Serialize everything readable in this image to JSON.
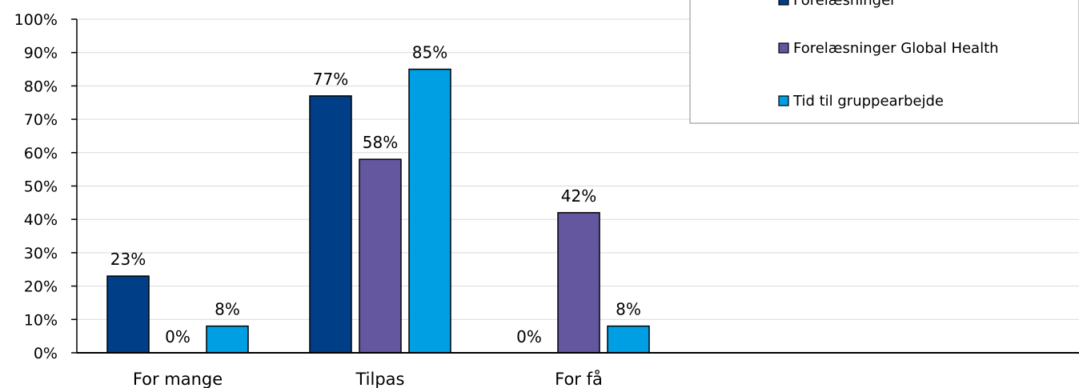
{
  "chart_data": {
    "type": "bar",
    "categories": [
      "For mange",
      "Tilpas",
      "For få"
    ],
    "series": [
      {
        "name": "Forelæsninger",
        "values": [
          23,
          77,
          0
        ],
        "labels": [
          "23%",
          "77%",
          "0%"
        ],
        "color": "#003F87"
      },
      {
        "name": "Forelæsninger Global Health",
        "values": [
          0,
          58,
          42
        ],
        "labels": [
          "0%",
          "58%",
          "42%"
        ],
        "color": "#6457A0"
      },
      {
        "name": "Tid til gruppearbejde",
        "values": [
          8,
          85,
          8
        ],
        "labels": [
          "8%",
          "85%",
          "8%"
        ],
        "color": "#009FE3"
      }
    ],
    "ylim": [
      0,
      100
    ],
    "yticks": [
      "0%",
      "10%",
      "20%",
      "30%",
      "40%",
      "50%",
      "60%",
      "70%",
      "80%",
      "90%",
      "100%"
    ],
    "title": "",
    "xlabel": "",
    "ylabel": "",
    "grid": true,
    "legend_position": "top-right"
  }
}
